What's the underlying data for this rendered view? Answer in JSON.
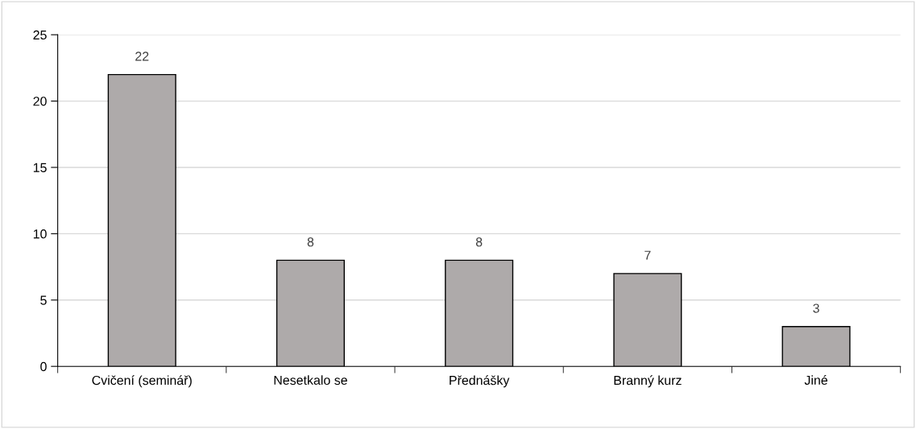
{
  "chart_data": {
    "type": "bar",
    "categories": [
      "Cvičení (seminář)",
      "Nesetkalo se",
      "Přednášky",
      "Branný kurz",
      "Jiné"
    ],
    "values": [
      22,
      8,
      8,
      7,
      3
    ],
    "color": "#aeaaaa",
    "ylim": [
      0,
      25
    ],
    "yticks": [
      0,
      5,
      10,
      15,
      20,
      25
    ],
    "grid": "y",
    "data_labels": true,
    "legend": false
  }
}
